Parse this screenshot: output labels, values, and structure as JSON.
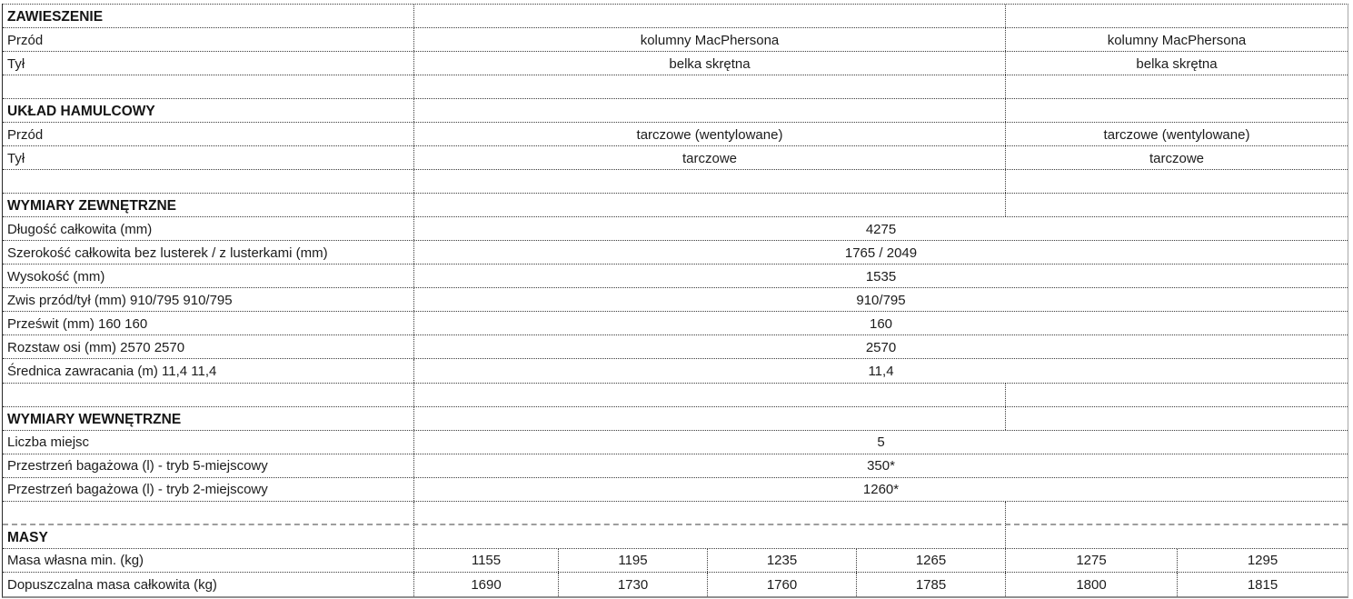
{
  "document": {
    "type": "spreadsheet-specification-table",
    "language": "pl"
  },
  "colors": {
    "background": "#ffffff",
    "text": "#1c1c1c",
    "grid_dotted": "#3b3b3b",
    "left_edge": "#2a2a2a",
    "right_edge": "#a8a8a8",
    "bottom_edge": "#909090",
    "page_break_dashed": "#9e9e9e"
  },
  "rows": [
    {
      "type": "header",
      "label": "ZAWIESZENIE"
    },
    {
      "type": "split",
      "label": "Przód",
      "center": "kolumny MacPhersona",
      "right": "kolumny MacPhersona"
    },
    {
      "type": "split",
      "label": "Tył",
      "center": "belka skrętna",
      "right": "belka skrętna"
    },
    {
      "type": "empty"
    },
    {
      "type": "header",
      "label": "UKŁAD HAMULCOWY"
    },
    {
      "type": "split",
      "label": "Przód",
      "center": "tarczowe (wentylowane)",
      "right": "tarczowe (wentylowane)"
    },
    {
      "type": "split",
      "label": "Tył",
      "center": "tarczowe",
      "right": "tarczowe"
    },
    {
      "type": "empty"
    },
    {
      "type": "header",
      "label": "WYMIARY ZEWNĘTRZNE"
    },
    {
      "type": "merged",
      "label": "Długość całkowita (mm)",
      "value": "4275"
    },
    {
      "type": "merged",
      "label": "Szerokość całkowita bez lusterek / z lusterkami (mm)",
      "value": "1765 / 2049"
    },
    {
      "type": "merged",
      "label": "Wysokość (mm)",
      "value": "1535"
    },
    {
      "type": "merged",
      "label": "Zwis przód/tył (mm) 910/795 910/795",
      "value": "910/795"
    },
    {
      "type": "merged",
      "label": "Prześwit (mm) 160 160",
      "value": "160"
    },
    {
      "type": "merged",
      "label": "Rozstaw osi (mm) 2570 2570",
      "value": "2570"
    },
    {
      "type": "merged",
      "label": "Średnica zawracania (m) 11,4 11,4",
      "value": "11,4"
    },
    {
      "type": "empty"
    },
    {
      "type": "header",
      "label": "WYMIARY WEWNĘTRZNE"
    },
    {
      "type": "merged",
      "label": "Liczba miejsc",
      "value": "5"
    },
    {
      "type": "merged",
      "label": "Przestrzeń bagażowa (l) - tryb 5-miejscowy",
      "value": "350*"
    },
    {
      "type": "merged",
      "label": "Przestrzeń bagażowa (l) - tryb 2-miejscowy",
      "value": "1260*"
    },
    {
      "type": "empty",
      "page_break_below": true
    },
    {
      "type": "header",
      "label": "MASY"
    },
    {
      "type": "six",
      "label": "Masa własna min. (kg)",
      "cells": [
        "1155",
        "1195",
        "1235",
        "1265",
        "1275",
        "1295"
      ]
    },
    {
      "type": "six",
      "label": "Dopuszczalna masa całkowita (kg)",
      "cells": [
        "1690",
        "1730",
        "1760",
        "1785",
        "1800",
        "1815"
      ]
    }
  ]
}
